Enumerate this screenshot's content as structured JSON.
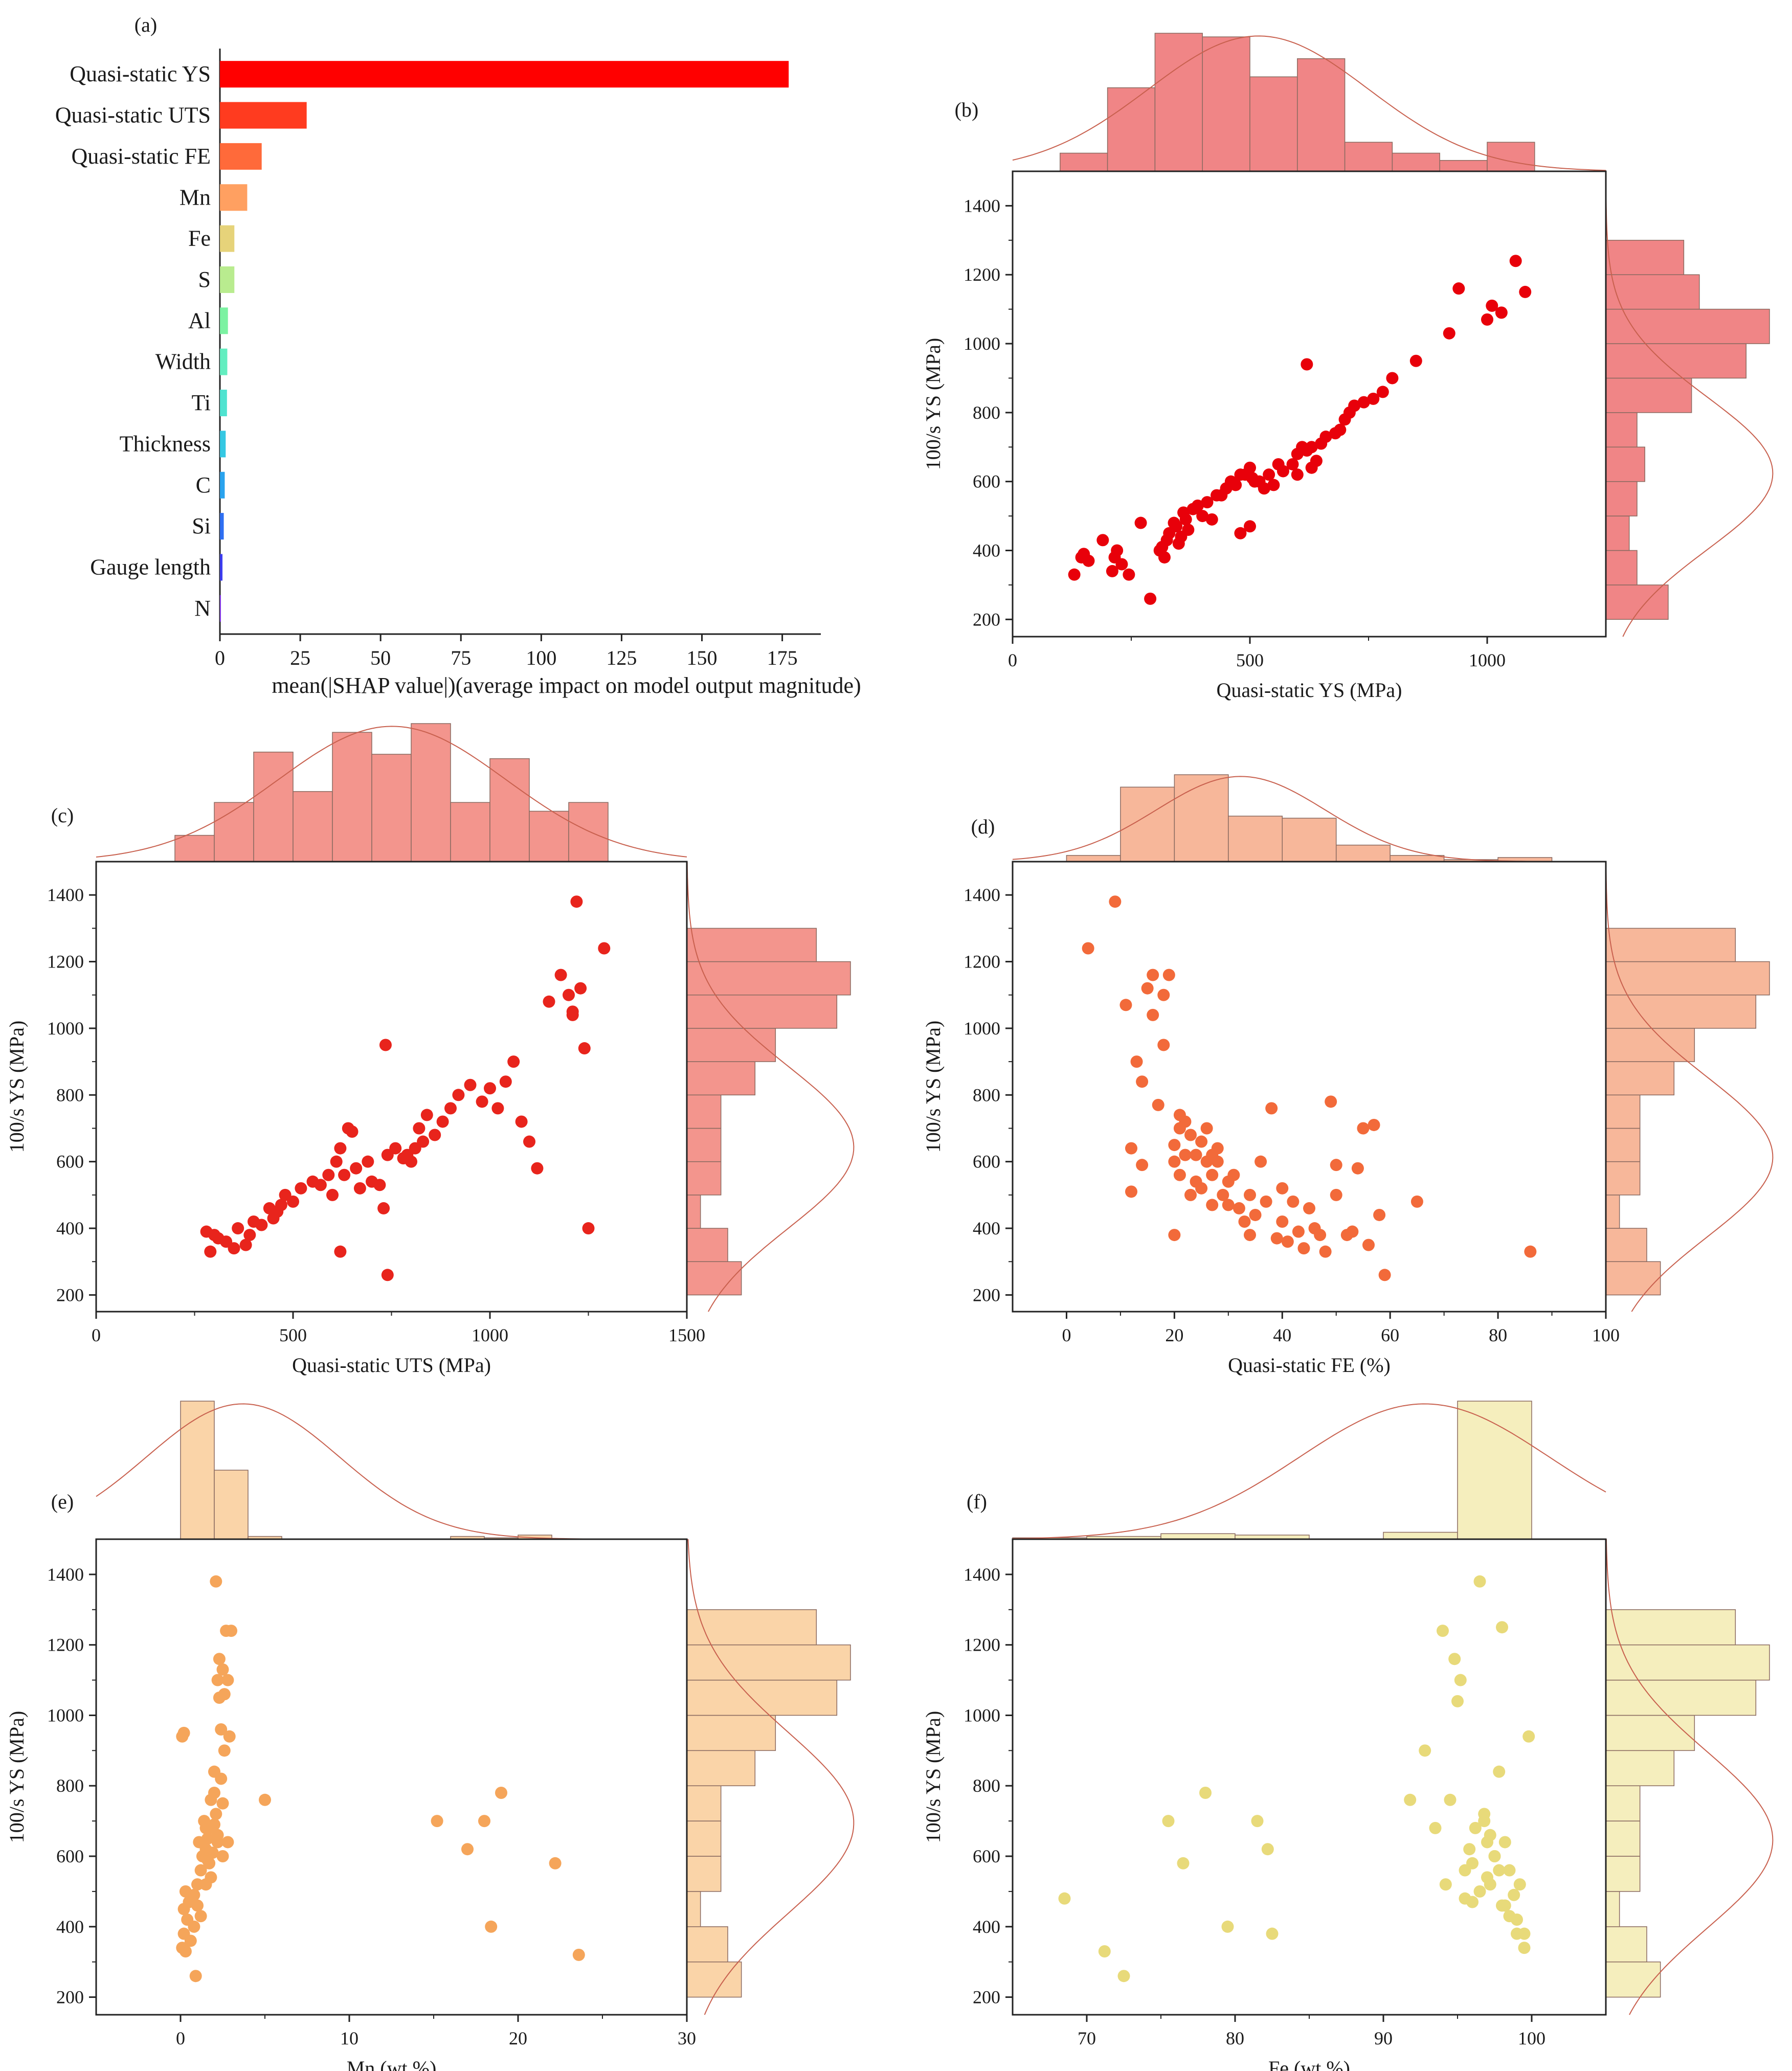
{
  "chart_data": [
    {
      "type": "bar",
      "orientation": "horizontal",
      "panel_label": "(a)",
      "categories": [
        "Quasi-static YS",
        "Quasi-static UTS",
        "Quasi-static FE",
        "Mn",
        "Fe",
        "S",
        "Al",
        "Width",
        "Ti",
        "Thickness",
        "C",
        "Si",
        "Gauge length",
        "N"
      ],
      "values": [
        177,
        27,
        13,
        8.5,
        4.5,
        4.5,
        2.5,
        2.3,
        2.2,
        1.8,
        1.5,
        1.2,
        0.8,
        0.3
      ],
      "colors": [
        "#ff0000",
        "#ff3b1f",
        "#ff6a3a",
        "#ffa061",
        "#e6d37a",
        "#b9ec8f",
        "#7cf2a2",
        "#63eec0",
        "#4fe3d0",
        "#35c8e3",
        "#2aa3ee",
        "#2f6ff2",
        "#3d3ef0",
        "#8a3cf0"
      ],
      "xlabel": "mean(|SHAP value|)(average impact on model output magnitude)",
      "xlim": [
        0,
        187
      ],
      "xticks": [
        0,
        25,
        50,
        75,
        100,
        125,
        150,
        175
      ]
    },
    {
      "type": "scatter",
      "panel_label": "(b)",
      "xlabel": "Quasi-static YS (MPa)",
      "ylabel": "100/s YS (MPa)",
      "xlim": [
        0,
        1250
      ],
      "ylim": [
        150,
        1500
      ],
      "xticks": [
        0,
        500,
        1000
      ],
      "yticks": [
        200,
        400,
        600,
        800,
        1000,
        1200,
        1400
      ],
      "color": "#e8000a",
      "hist_color": "#f08586",
      "x": [
        130,
        145,
        150,
        160,
        190,
        210,
        215,
        220,
        230,
        245,
        270,
        290,
        310,
        315,
        320,
        325,
        330,
        340,
        345,
        350,
        355,
        360,
        365,
        370,
        380,
        390,
        400,
        410,
        420,
        430,
        440,
        450,
        460,
        470,
        480,
        490,
        500,
        505,
        510,
        520,
        530,
        540,
        550,
        560,
        570,
        590,
        600,
        610,
        620,
        630,
        640,
        650,
        660,
        680,
        690,
        700,
        710,
        720,
        740,
        760,
        780,
        800,
        850,
        920,
        940,
        1000,
        1010,
        1030,
        1060,
        1080,
        620,
        630,
        600,
        480,
        500
      ],
      "y": [
        330,
        380,
        390,
        370,
        430,
        340,
        380,
        400,
        360,
        330,
        480,
        260,
        400,
        410,
        380,
        430,
        450,
        480,
        470,
        420,
        440,
        510,
        490,
        460,
        520,
        530,
        500,
        540,
        490,
        560,
        560,
        580,
        600,
        590,
        620,
        620,
        640,
        610,
        600,
        600,
        580,
        620,
        590,
        650,
        630,
        650,
        680,
        700,
        690,
        640,
        660,
        710,
        730,
        740,
        750,
        780,
        800,
        820,
        830,
        840,
        860,
        900,
        950,
        1030,
        1160,
        1070,
        1110,
        1090,
        1240,
        1150,
        940,
        700,
        620,
        450,
        470
      ],
      "x_hist": {
        "edges": [
          100,
          200,
          300,
          400,
          500,
          600,
          700,
          800,
          900,
          1000,
          1100
        ],
        "counts": [
          5,
          23,
          38,
          37,
          26,
          31,
          8,
          5,
          3,
          8
        ]
      },
      "y_hist": {
        "edges": [
          200,
          300,
          400,
          500,
          600,
          700,
          800,
          900,
          1000,
          1100,
          1200,
          1300
        ],
        "counts": [
          8,
          4,
          3,
          4,
          5,
          4,
          11,
          18,
          21,
          12,
          10,
          1
        ]
      }
    },
    {
      "type": "scatter",
      "panel_label": "(c)",
      "xlabel": "Quasi-static UTS (MPa)",
      "ylabel": "100/s YS (MPa)",
      "xlim": [
        0,
        1500
      ],
      "ylim": [
        150,
        1500
      ],
      "xticks": [
        0,
        500,
        1000,
        1500
      ],
      "yticks": [
        200,
        400,
        600,
        800,
        1000,
        1200,
        1400
      ],
      "color": "#e8241c",
      "hist_color": "#f3958d",
      "x": [
        280,
        290,
        300,
        310,
        330,
        350,
        360,
        380,
        390,
        400,
        420,
        440,
        450,
        460,
        470,
        480,
        500,
        520,
        550,
        570,
        590,
        600,
        610,
        620,
        630,
        640,
        650,
        660,
        670,
        690,
        700,
        720,
        740,
        760,
        780,
        790,
        800,
        810,
        820,
        830,
        840,
        860,
        880,
        900,
        920,
        950,
        980,
        1000,
        1020,
        1040,
        1060,
        1080,
        1100,
        1120,
        1150,
        1180,
        1200,
        1210,
        1220,
        1230,
        1240,
        1250,
        1290,
        1210,
        740,
        735,
        620,
        730
      ],
      "y": [
        390,
        330,
        380,
        370,
        360,
        340,
        400,
        350,
        380,
        420,
        410,
        460,
        430,
        450,
        470,
        500,
        480,
        520,
        540,
        530,
        560,
        500,
        600,
        640,
        560,
        700,
        690,
        580,
        520,
        600,
        540,
        530,
        620,
        640,
        610,
        620,
        600,
        640,
        700,
        660,
        740,
        680,
        720,
        760,
        800,
        830,
        780,
        820,
        760,
        840,
        900,
        720,
        660,
        580,
        1080,
        1160,
        1100,
        1040,
        1380,
        1120,
        940,
        400,
        1240,
        1050,
        260,
        950,
        330,
        460
      ],
      "x_hist": {
        "edges": [
          200,
          300,
          400,
          500,
          600,
          700,
          800,
          900,
          1000,
          1100,
          1200,
          1300
        ],
        "counts": [
          12,
          27,
          50,
          32,
          59,
          49,
          63,
          27,
          47,
          23,
          27
        ]
      },
      "y_hist": {
        "edges": [
          200,
          300,
          400,
          500,
          600,
          700,
          800,
          900,
          1000,
          1100,
          1200,
          1300
        ],
        "counts": [
          8,
          6,
          2,
          5,
          5,
          5,
          10,
          13,
          22,
          24,
          19,
          8
        ]
      }
    },
    {
      "type": "scatter",
      "panel_label": "(d)",
      "xlabel": "Quasi-static FE (%)",
      "ylabel": "100/s YS (MPa)",
      "xlim": [
        -10,
        100
      ],
      "ylim": [
        150,
        1500
      ],
      "xticks": [
        0,
        20,
        40,
        60,
        80,
        100
      ],
      "yticks": [
        200,
        400,
        600,
        800,
        1000,
        1200,
        1400
      ],
      "color": "#f26a3a",
      "hist_color": "#f7b79a",
      "x": [
        4,
        9,
        11,
        12,
        13,
        14,
        15,
        16,
        16,
        17,
        18,
        18,
        19,
        20,
        20,
        21,
        21,
        22,
        22,
        23,
        23,
        24,
        24,
        25,
        25,
        26,
        26,
        27,
        27,
        28,
        28,
        29,
        30,
        30,
        31,
        32,
        33,
        34,
        34,
        35,
        36,
        37,
        38,
        39,
        40,
        40,
        41,
        42,
        43,
        44,
        45,
        46,
        47,
        48,
        49,
        50,
        50,
        52,
        53,
        54,
        55,
        56,
        57,
        58,
        59,
        65,
        86,
        20,
        14,
        12,
        21,
        27
      ],
      "y": [
        1240,
        1380,
        1070,
        640,
        900,
        840,
        1120,
        1160,
        1040,
        770,
        950,
        1100,
        1160,
        600,
        650,
        700,
        560,
        620,
        720,
        680,
        500,
        540,
        620,
        660,
        520,
        600,
        700,
        470,
        560,
        640,
        600,
        500,
        470,
        540,
        560,
        460,
        420,
        380,
        500,
        440,
        600,
        480,
        760,
        370,
        420,
        520,
        360,
        480,
        390,
        340,
        460,
        400,
        380,
        330,
        780,
        500,
        590,
        380,
        390,
        580,
        700,
        350,
        710,
        440,
        260,
        480,
        330,
        380,
        590,
        510,
        740,
        620
      ],
      "x_hist": {
        "edges": [
          0,
          10,
          20,
          30,
          40,
          50,
          60,
          70,
          80,
          90
        ],
        "counts": [
          3,
          36,
          42,
          22,
          21,
          8,
          3,
          1,
          2
        ]
      },
      "y_hist": {
        "edges": [
          200,
          300,
          400,
          500,
          600,
          700,
          800,
          900,
          1000,
          1100,
          1200,
          1300
        ],
        "counts": [
          8,
          6,
          2,
          5,
          5,
          5,
          10,
          13,
          22,
          24,
          19,
          8
        ]
      }
    },
    {
      "type": "scatter",
      "panel_label": "(e)",
      "xlabel": "Mn (wt.%)",
      "ylabel": "100/s YS (MPa)",
      "xlim": [
        -5,
        30
      ],
      "ylim": [
        150,
        1500
      ],
      "xticks": [
        0,
        10,
        20,
        30
      ],
      "yticks": [
        200,
        400,
        600,
        800,
        1000,
        1200,
        1400
      ],
      "color": "#f5a55a",
      "hist_color": "#fad4a8",
      "x": [
        0.1,
        0.1,
        0.2,
        0.2,
        0.3,
        0.4,
        0.5,
        0.6,
        0.8,
        0.9,
        1.0,
        1.0,
        1.1,
        1.2,
        1.3,
        1.4,
        1.5,
        1.5,
        1.6,
        1.7,
        1.8,
        1.8,
        1.9,
        2.0,
        2.0,
        2.1,
        2.1,
        2.2,
        2.2,
        2.3,
        2.3,
        2.4,
        2.4,
        2.5,
        2.5,
        2.6,
        2.6,
        2.7,
        2.8,
        2.9,
        3.0,
        1.2,
        1.5,
        2.0,
        2.5,
        1.8,
        2.2,
        5.0,
        15.2,
        17.0,
        18.0,
        18.4,
        19.0,
        22.2,
        23.6,
        0.2,
        0.3,
        0.8,
        1.6,
        2.8
      ],
      "y": [
        940,
        340,
        380,
        450,
        500,
        420,
        470,
        360,
        490,
        260,
        520,
        460,
        640,
        560,
        600,
        700,
        680,
        620,
        650,
        580,
        540,
        760,
        610,
        780,
        690,
        720,
        1380,
        640,
        1100,
        1160,
        1050,
        960,
        820,
        750,
        1130,
        1060,
        900,
        1240,
        1100,
        940,
        1240,
        430,
        520,
        840,
        600,
        680,
        660,
        760,
        700,
        620,
        700,
        400,
        780,
        580,
        320,
        950,
        330,
        400,
        590,
        640
      ],
      "x_hist": {
        "edges": [
          0,
          2,
          4,
          6,
          8,
          10,
          12,
          14,
          16,
          18,
          20,
          22,
          24
        ],
        "counts": [
          100,
          50,
          2,
          0,
          0,
          0,
          0,
          0,
          2,
          1,
          3,
          0,
          3
        ]
      },
      "y_hist": {
        "edges": [
          200,
          300,
          400,
          500,
          600,
          700,
          800,
          900,
          1000,
          1100,
          1200,
          1300
        ],
        "counts": [
          8,
          6,
          2,
          5,
          5,
          5,
          10,
          13,
          22,
          24,
          19,
          8
        ]
      }
    },
    {
      "type": "scatter",
      "panel_label": "(f)",
      "xlabel": "Fe (wt.%)",
      "ylabel": "100/s YS (MPa)",
      "xlim": [
        65,
        105
      ],
      "ylim": [
        150,
        1500
      ],
      "xticks": [
        70,
        80,
        90,
        100
      ],
      "yticks": [
        200,
        400,
        600,
        800,
        1000,
        1200,
        1400
      ],
      "color": "#e8da7a",
      "hist_color": "#f5eebd",
      "x": [
        68.5,
        71.2,
        72.5,
        75.5,
        76.5,
        78.0,
        79.5,
        81.5,
        82.2,
        82.5,
        91.8,
        92.8,
        93.5,
        94.0,
        94.2,
        94.5,
        94.8,
        95.0,
        95.2,
        95.5,
        95.8,
        96.0,
        96.2,
        96.5,
        96.8,
        97.0,
        97.2,
        97.5,
        97.8,
        98.0,
        98.2,
        98.5,
        98.8,
        99.0,
        99.2,
        99.5,
        99.8,
        96.5,
        97.0,
        97.5,
        98.0,
        98.5,
        99.0,
        99.5,
        97.2,
        96.8,
        98.2,
        95.5,
        96.0,
        97.8
      ],
      "y": [
        480,
        330,
        260,
        700,
        580,
        780,
        400,
        700,
        620,
        380,
        760,
        900,
        680,
        1240,
        520,
        760,
        1160,
        1040,
        1100,
        560,
        620,
        580,
        680,
        1380,
        700,
        640,
        520,
        600,
        840,
        1250,
        460,
        560,
        490,
        420,
        520,
        380,
        940,
        500,
        540,
        600,
        460,
        430,
        380,
        340,
        660,
        720,
        640,
        480,
        470,
        560
      ],
      "x_hist": {
        "edges": [
          65,
          70,
          75,
          80,
          85,
          90,
          95,
          100
        ],
        "counts": [
          1,
          2,
          4,
          3,
          0,
          5,
          100
        ]
      },
      "y_hist": {
        "edges": [
          200,
          300,
          400,
          500,
          600,
          700,
          800,
          900,
          1000,
          1100,
          1200,
          1300
        ],
        "counts": [
          8,
          6,
          2,
          5,
          5,
          5,
          10,
          13,
          22,
          24,
          19,
          8
        ]
      }
    }
  ]
}
